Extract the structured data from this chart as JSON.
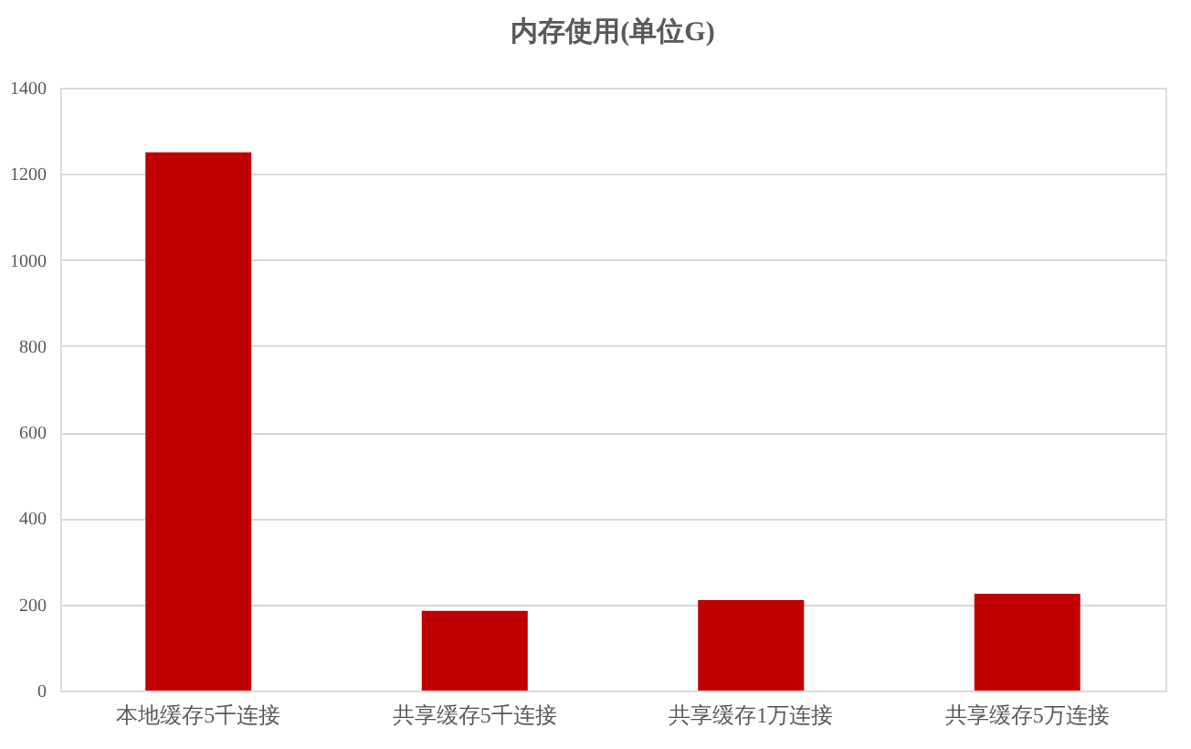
{
  "chart_data": {
    "type": "bar",
    "title": "内存使用(单位G)",
    "categories": [
      "本地缓存5千连接",
      "共享缓存5千连接",
      "共享缓存1万连接",
      "共享缓存5万连接"
    ],
    "values": [
      1250,
      185,
      210,
      225
    ],
    "color": "#c00000",
    "ylim": [
      0,
      1400
    ],
    "yticks": [
      0,
      200,
      400,
      600,
      800,
      1000,
      1200,
      1400
    ],
    "grid": "y"
  }
}
